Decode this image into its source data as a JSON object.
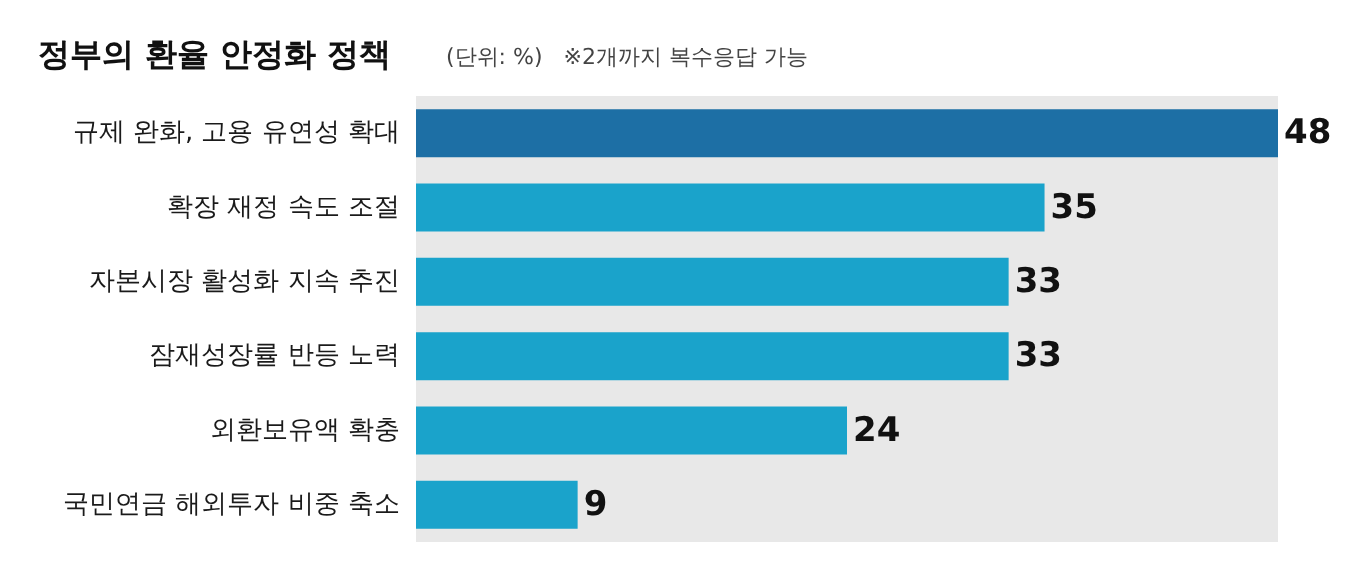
{
  "chart_data": {
    "type": "bar",
    "orientation": "horizontal",
    "title": "정부의 환율 안정화 정책",
    "subtitle": "(단위: %)",
    "annotations": [
      "※2개까지 복수응답 가능"
    ],
    "categories": [
      "규제 완화, 고용 유연성 확대",
      "확장 재정 속도 조절",
      "자본시장 활성화 지속 추진",
      "잠재성장률 반등 노력",
      "외환보유액 확충",
      "국민연금 해외투자 비중 축소"
    ],
    "values": [
      48,
      35,
      33,
      33,
      24,
      9
    ],
    "colors": [
      "#1d6fa5",
      "#1aa3cb",
      "#1aa3cb",
      "#1aa3cb",
      "#1aa3cb",
      "#1aa3cb"
    ],
    "data_labels": true
  }
}
